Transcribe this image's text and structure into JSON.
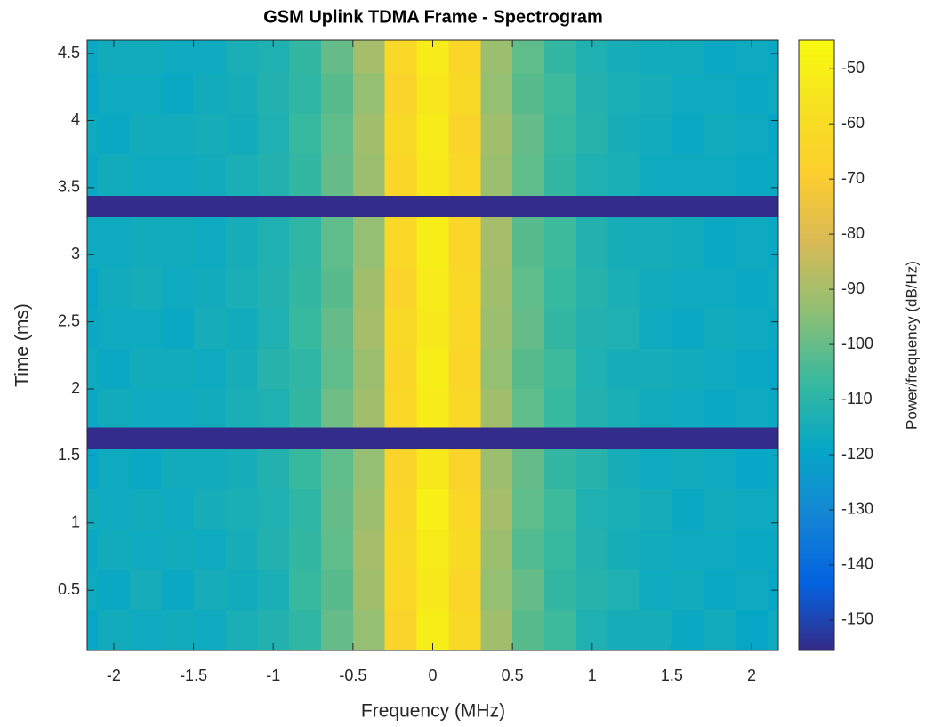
{
  "chart_data": {
    "type": "heatmap",
    "title": "GSM Uplink TDMA Frame - Spectrogram",
    "x_label": "Frequency (MHz)",
    "y_label": "Time (ms)",
    "colorbar_label": "Power/frequency (dB/Hz)",
    "colormap": "parula",
    "x_edges": [
      -2.167,
      -2.1,
      -1.9,
      -1.7,
      -1.5,
      -1.3,
      -1.1,
      -0.9,
      -0.7,
      -0.5,
      -0.3,
      -0.1,
      0.1,
      0.3,
      0.5,
      0.7,
      0.9,
      1.1,
      1.3,
      1.5,
      1.7,
      1.9,
      2.1,
      2.167
    ],
    "y_edges": [
      0.05,
      0.35,
      0.65,
      0.95,
      1.25,
      1.55,
      1.71,
      2.0,
      2.3,
      2.6,
      2.9,
      3.28,
      3.44,
      3.75,
      4.05,
      4.35,
      4.6
    ],
    "z": [
      [
        -119,
        -116,
        -117,
        -116,
        -117,
        -114,
        -112,
        -109,
        -100,
        -93,
        -65,
        -51,
        -62,
        -91,
        -102,
        -106,
        -113,
        -115,
        -115,
        -118,
        -116,
        -119,
        -117
      ],
      [
        -117,
        -118,
        -115,
        -118,
        -115,
        -116,
        -114,
        -107,
        -102,
        -91,
        -63,
        -53,
        -64,
        -93,
        -100,
        -108,
        -111,
        -113,
        -117,
        -116,
        -118,
        -117,
        -119
      ],
      [
        -118,
        -116,
        -117,
        -116,
        -117,
        -115,
        -112,
        -108,
        -101,
        -90,
        -62,
        -52,
        -61,
        -92,
        -103,
        -107,
        -112,
        -115,
        -116,
        -117,
        -117,
        -118,
        -118
      ],
      [
        -116,
        -117,
        -116,
        -117,
        -115,
        -114,
        -113,
        -109,
        -100,
        -92,
        -64,
        -50,
        -63,
        -90,
        -101,
        -106,
        -113,
        -114,
        -115,
        -118,
        -116,
        -117,
        -117
      ],
      [
        -119,
        -117,
        -118,
        -116,
        -116,
        -115,
        -112,
        -107,
        -101,
        -93,
        -66,
        -53,
        -65,
        -92,
        -100,
        -108,
        -111,
        -115,
        -117,
        -116,
        -117,
        -119,
        -118
      ],
      [
        -155,
        -155,
        -155,
        -155,
        -155,
        -155,
        -155,
        -155,
        -155,
        -155,
        -155,
        -155,
        -155,
        -155,
        -155,
        -155,
        -155,
        -155,
        -155,
        -155,
        -155,
        -155,
        -155
      ],
      [
        -118,
        -116,
        -117,
        -117,
        -116,
        -114,
        -113,
        -108,
        -99,
        -91,
        -63,
        -52,
        -62,
        -91,
        -101,
        -107,
        -112,
        -114,
        -116,
        -117,
        -118,
        -117,
        -118
      ],
      [
        -117,
        -118,
        -116,
        -116,
        -117,
        -115,
        -111,
        -109,
        -101,
        -92,
        -64,
        -51,
        -64,
        -93,
        -102,
        -106,
        -113,
        -115,
        -115,
        -116,
        -117,
        -118,
        -119
      ],
      [
        -118,
        -117,
        -117,
        -118,
        -115,
        -116,
        -113,
        -107,
        -100,
        -90,
        -62,
        -53,
        -63,
        -92,
        -100,
        -108,
        -112,
        -113,
        -117,
        -118,
        -116,
        -117,
        -118
      ],
      [
        -119,
        -116,
        -115,
        -117,
        -116,
        -114,
        -112,
        -108,
        -102,
        -91,
        -65,
        -52,
        -62,
        -91,
        -101,
        -107,
        -111,
        -114,
        -116,
        -117,
        -117,
        -118,
        -117
      ],
      [
        -117,
        -117,
        -116,
        -116,
        -117,
        -115,
        -113,
        -109,
        -101,
        -93,
        -63,
        -51,
        -64,
        -90,
        -102,
        -106,
        -112,
        -115,
        -115,
        -116,
        -118,
        -117,
        -118
      ],
      [
        -155,
        -155,
        -155,
        -155,
        -155,
        -155,
        -155,
        -155,
        -155,
        -155,
        -155,
        -155,
        -155,
        -155,
        -155,
        -155,
        -155,
        -155,
        -155,
        -155,
        -155,
        -155,
        -155
      ],
      [
        -118,
        -116,
        -117,
        -117,
        -116,
        -114,
        -112,
        -108,
        -100,
        -92,
        -64,
        -53,
        -63,
        -92,
        -101,
        -108,
        -113,
        -114,
        -117,
        -117,
        -117,
        -118,
        -118
      ],
      [
        -117,
        -118,
        -116,
        -116,
        -115,
        -116,
        -113,
        -107,
        -101,
        -91,
        -62,
        -52,
        -65,
        -91,
        -100,
        -107,
        -111,
        -115,
        -116,
        -118,
        -116,
        -117,
        -119
      ],
      [
        -119,
        -117,
        -117,
        -118,
        -116,
        -115,
        -112,
        -109,
        -102,
        -93,
        -65,
        -54,
        -62,
        -93,
        -102,
        -106,
        -112,
        -114,
        -115,
        -117,
        -117,
        -118,
        -117
      ],
      [
        -118,
        -116,
        -116,
        -117,
        -117,
        -114,
        -113,
        -108,
        -100,
        -90,
        -63,
        -52,
        -64,
        -92,
        -101,
        -108,
        -113,
        -115,
        -116,
        -116,
        -118,
        -117,
        -118
      ]
    ],
    "xlim": [
      -2.167,
      2.167
    ],
    "ylim": [
      0.05,
      4.6
    ],
    "clim": [
      -155.5,
      -44.8
    ],
    "xticks": [
      -2,
      -1.5,
      -1,
      -0.5,
      0,
      0.5,
      1,
      1.5,
      2
    ],
    "yticks": [
      0.5,
      1,
      1.5,
      2,
      2.5,
      3,
      3.5,
      4,
      4.5
    ],
    "cticks": [
      -150,
      -140,
      -130,
      -120,
      -110,
      -100,
      -90,
      -80,
      -70,
      -60,
      -50
    ]
  }
}
